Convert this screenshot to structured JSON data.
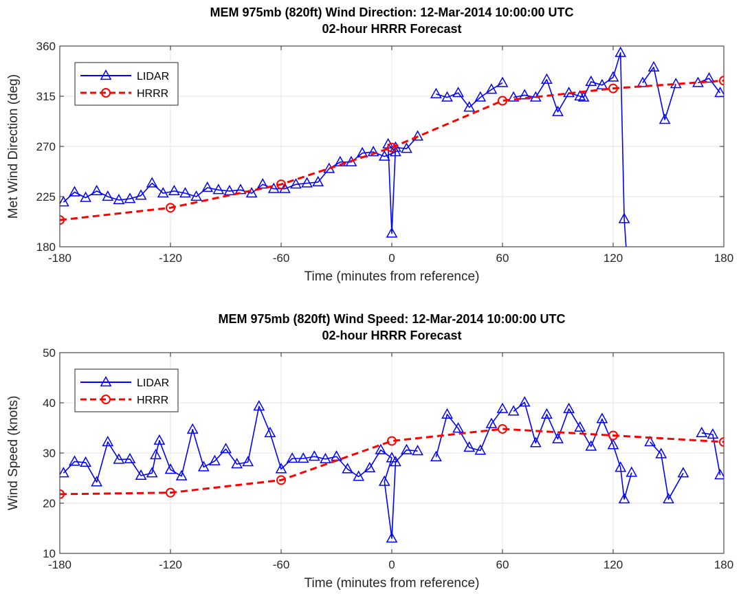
{
  "chart_data": [
    {
      "type": "line",
      "title": "MEM 975mb (820ft) Wind Direction: 12-Mar-2014 10:00:00 UTC",
      "subtitle": "02-hour HRRR Forecast",
      "xlabel": "Time (minutes from reference)",
      "ylabel": "Met Wind Direction (deg)",
      "xlim": [
        -180,
        180
      ],
      "ylim": [
        180,
        360
      ],
      "xticks": [
        -180,
        -120,
        -60,
        0,
        60,
        120,
        180
      ],
      "yticks": [
        180,
        225,
        270,
        315,
        360
      ],
      "grid": true,
      "legend_position": "top-left",
      "series": [
        {
          "name": "LIDAR",
          "color": "#0000ff",
          "marker": "triangle",
          "line": "solid",
          "points": [
            [
              [
                -178,
                220
              ],
              [
                -172,
                229
              ],
              [
                -166,
                224
              ],
              [
                -160,
                230
              ],
              [
                -154,
                225
              ],
              [
                -148,
                222
              ],
              [
                -142,
                223
              ],
              [
                -136,
                226
              ],
              [
                -130,
                237
              ],
              [
                -124,
                228
              ],
              [
                -118,
                230
              ],
              [
                -112,
                228
              ],
              [
                -106,
                225
              ],
              [
                -100,
                233
              ],
              [
                -94,
                231
              ],
              [
                -88,
                230
              ],
              [
                -82,
                231
              ],
              [
                -76,
                228
              ],
              [
                -70,
                236
              ],
              [
                -64,
                232
              ],
              [
                -58,
                232
              ],
              [
                -52,
                236
              ],
              [
                -46,
                237
              ],
              [
                -40,
                238
              ],
              [
                -34,
                250
              ],
              [
                -28,
                256
              ],
              [
                -22,
                256
              ],
              [
                -16,
                264
              ],
              [
                -10,
                265
              ],
              [
                -4,
                261
              ],
              [
                2,
                265
              ],
              [
                -2,
                272
              ],
              [
                0,
                192
              ],
              [
                2,
                269
              ],
              [
                8,
                268
              ],
              [
                14,
                279
              ]
            ],
            [
              [
                24,
                317
              ],
              [
                30,
                314
              ],
              [
                36,
                318
              ],
              [
                42,
                305
              ],
              [
                48,
                314
              ],
              [
                54,
                321
              ],
              [
                60,
                327
              ]
            ],
            [
              [
                66,
                314
              ],
              [
                72,
                316
              ],
              [
                78,
                314
              ],
              [
                84,
                330
              ],
              [
                90,
                301
              ],
              [
                96,
                318
              ],
              [
                102,
                315
              ],
              [
                104,
                314
              ],
              [
                108,
                328
              ],
              [
                114,
                325
              ],
              [
                120,
                332
              ],
              [
                124,
                354
              ],
              [
                126,
                205
              ],
              [
                127,
                180
              ]
            ],
            [
              [
                136,
                327
              ],
              [
                142,
                341
              ],
              [
                148,
                294
              ],
              [
                154,
                326
              ]
            ],
            [
              [
                166,
                327
              ],
              [
                172,
                331
              ],
              [
                178,
                318
              ]
            ]
          ]
        },
        {
          "name": "HRRR",
          "color": "#ff0000",
          "marker": "circle",
          "line": "dashed",
          "points": [
            [
              [
                -180,
                204
              ],
              [
                -120,
                215
              ],
              [
                -60,
                236
              ],
              [
                0,
                269
              ],
              [
                60,
                311
              ],
              [
                120,
                322
              ],
              [
                180,
                329
              ]
            ]
          ],
          "marker_x": [
            -180,
            -120,
            -60,
            0,
            60,
            120,
            180
          ]
        }
      ]
    },
    {
      "type": "line",
      "title": "MEM 975mb (820ft) Wind Speed: 12-Mar-2014 10:00:00 UTC",
      "subtitle": "02-hour HRRR Forecast",
      "xlabel": "Time (minutes from reference)",
      "ylabel": "Wind Speed (knots)",
      "xlim": [
        -180,
        180
      ],
      "ylim": [
        10,
        50
      ],
      "xticks": [
        -180,
        -120,
        -60,
        0,
        60,
        120,
        180
      ],
      "yticks": [
        10,
        20,
        30,
        40,
        50
      ],
      "grid": true,
      "legend_position": "top-left",
      "series": [
        {
          "name": "LIDAR",
          "color": "#0000ff",
          "marker": "triangle",
          "line": "solid",
          "points": [
            [
              [
                -178,
                26
              ],
              [
                -172,
                28.3
              ],
              [
                -166,
                28.1
              ],
              [
                -160,
                24.2
              ],
              [
                -154,
                32.2
              ],
              [
                -148,
                28.7
              ],
              [
                -142,
                28.8
              ],
              [
                -136,
                25.5
              ],
              [
                -130,
                26
              ],
              [
                -128,
                29.6
              ],
              [
                -126,
                32.5
              ],
              [
                -120,
                26.7
              ],
              [
                -114,
                25.4
              ],
              [
                -108,
                34.7
              ],
              [
                -102,
                27.2
              ],
              [
                -96,
                28.4
              ],
              [
                -90,
                30.8
              ],
              [
                -84,
                27.8
              ],
              [
                -78,
                28.2
              ],
              [
                -72,
                39.3
              ],
              [
                -66,
                34
              ],
              [
                -60,
                26.8
              ],
              [
                -54,
                28.9
              ],
              [
                -48,
                28.9
              ],
              [
                -42,
                29.3
              ],
              [
                -36,
                28.8
              ],
              [
                -30,
                29.3
              ],
              [
                -24,
                26.8
              ],
              [
                -18,
                25.3
              ],
              [
                -12,
                27
              ],
              [
                -6,
                30.6
              ],
              [
                0,
                29
              ],
              [
                -4,
                24.3
              ],
              [
                0,
                13
              ],
              [
                2,
                28.2
              ],
              [
                8,
                30.6
              ],
              [
                14,
                30.4
              ]
            ],
            [
              [
                24,
                29.2
              ],
              [
                30,
                37.7
              ],
              [
                36,
                34.9
              ],
              [
                42,
                31.1
              ],
              [
                48,
                30.5
              ],
              [
                54,
                35.8
              ],
              [
                60,
                38.8
              ]
            ],
            [
              [
                66,
                38.3
              ],
              [
                72,
                40.1
              ],
              [
                78,
                32
              ],
              [
                84,
                37.7
              ],
              [
                90,
                32.8
              ],
              [
                96,
                38.8
              ],
              [
                102,
                35.1
              ],
              [
                108,
                31.3
              ],
              [
                114,
                36.8
              ],
              [
                120,
                31.6
              ],
              [
                124,
                27.1
              ],
              [
                126,
                20.8
              ],
              [
                130,
                26.1
              ]
            ],
            [
              [
                140,
                32.2
              ],
              [
                146,
                29.8
              ],
              [
                150,
                20.8
              ],
              [
                158,
                26
              ]
            ],
            [
              [
                168,
                34
              ],
              [
                174,
                33.7
              ],
              [
                178,
                25.6
              ]
            ]
          ]
        },
        {
          "name": "HRRR",
          "color": "#ff0000",
          "marker": "circle",
          "line": "dashed",
          "points": [
            [
              [
                -180,
                21.8
              ],
              [
                -120,
                22.1
              ],
              [
                -60,
                24.6
              ],
              [
                0,
                32.4
              ],
              [
                60,
                34.8
              ],
              [
                120,
                33.5
              ],
              [
                180,
                32.2
              ]
            ]
          ],
          "marker_x": [
            -180,
            -120,
            -60,
            0,
            60,
            120,
            180
          ]
        }
      ]
    }
  ]
}
